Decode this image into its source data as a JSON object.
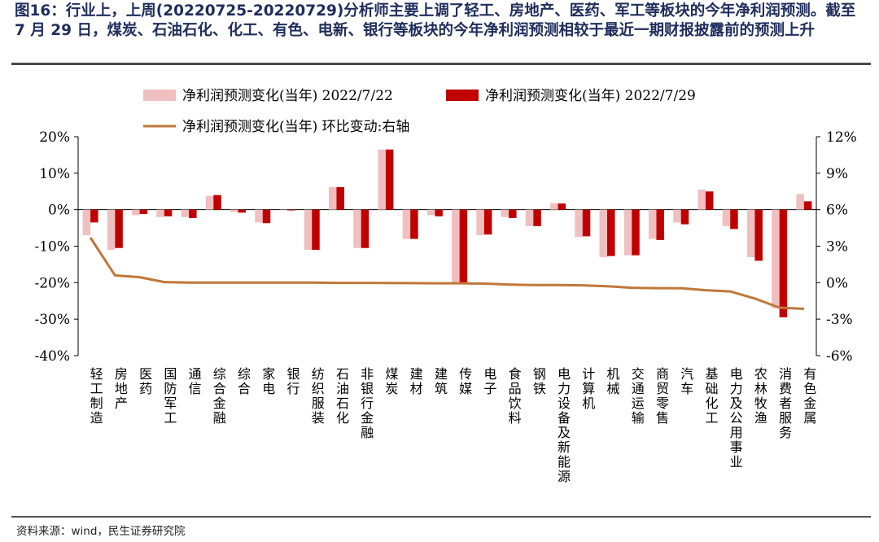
{
  "figure": {
    "title": "图16：行业上，上周(20220725-20220729)分析师主要上调了轻工、房地产、医药、军工等板块的今年净利润预测。截至 7 月 29 日，煤炭、石油石化、化工、有色、电新、银行等板块的今年净利润预测相较于最近一期财报披露前的预测上升",
    "source": "资料来源：wind，民生证券研究院"
  },
  "colors": {
    "series1": "#f0bfc0",
    "series2": "#c00000",
    "line": "#c0773a",
    "title": "#1f2d5c"
  },
  "chart_data": {
    "type": "bar",
    "categories": [
      "轻工制造",
      "房地产",
      "医药",
      "国防军工",
      "通信",
      "综合金融",
      "综合",
      "家电",
      "银行",
      "纺织服装",
      "石油石化",
      "非银行金融",
      "煤炭",
      "建材",
      "建筑",
      "传媒",
      "电子",
      "食品饮料",
      "钢铁",
      "电力设备及新能源",
      "计算机",
      "机械",
      "交通运输",
      "商贸零售",
      "汽车",
      "基础化工",
      "电力及公用事业",
      "农林牧渔",
      "消费者服务",
      "有色金属"
    ],
    "series": [
      {
        "name": "净利润预测变化(当年) 2022/7/22",
        "type": "bar",
        "axis": "left",
        "values": [
          -7,
          -11,
          -1.5,
          -2,
          -2,
          3.8,
          -0.6,
          -3.5,
          -0.2,
          -11,
          6.2,
          -10.5,
          16.5,
          -8,
          -1.5,
          -20,
          -7,
          -2,
          -4.5,
          1.8,
          -7.5,
          -13,
          -12.5,
          -8,
          -3.5,
          5.5,
          -4.5,
          -13,
          -27,
          4.3
        ]
      },
      {
        "name": "净利润预测变化(当年) 2022/7/29",
        "type": "bar",
        "axis": "left",
        "values": [
          -3.5,
          -10.5,
          -1.2,
          -1.8,
          -2.3,
          4,
          -0.8,
          -3.7,
          -0.2,
          -11,
          6.2,
          -10.5,
          16.5,
          -8,
          -1.8,
          -20,
          -6.8,
          -2.3,
          -4.5,
          1.7,
          -7.3,
          -12.7,
          -12.5,
          -8.3,
          -4,
          5,
          -5.3,
          -14,
          -29.5,
          2.3
        ]
      },
      {
        "name": "净利润预测变化(当年) 环比变动:右轴",
        "type": "line",
        "axis": "right",
        "values": [
          3.7,
          0.6,
          0.45,
          0.05,
          0,
          0,
          0,
          0,
          0,
          0,
          -0.02,
          -0.02,
          -0.03,
          -0.04,
          -0.05,
          -0.05,
          -0.08,
          -0.15,
          -0.2,
          -0.2,
          -0.22,
          -0.3,
          -0.42,
          -0.45,
          -0.45,
          -0.62,
          -0.72,
          -1.3,
          -2.05,
          -2.15
        ]
      }
    ],
    "y_left": {
      "min": -40,
      "max": 20,
      "ticks": [
        20,
        10,
        0,
        -10,
        -20,
        -30,
        -40
      ],
      "tick_labels": [
        "20%",
        "10%",
        "0%",
        "-10%",
        "-20%",
        "-30%",
        "-40%"
      ]
    },
    "y_right": {
      "min": -6,
      "max": 12,
      "ticks": [
        12,
        9,
        6,
        3,
        0,
        -3,
        -6
      ],
      "tick_labels": [
        "12%",
        "9%",
        "6%",
        "3%",
        "0%",
        "-3%",
        "-6%"
      ]
    },
    "legend_position": "top-left",
    "grid": false
  }
}
